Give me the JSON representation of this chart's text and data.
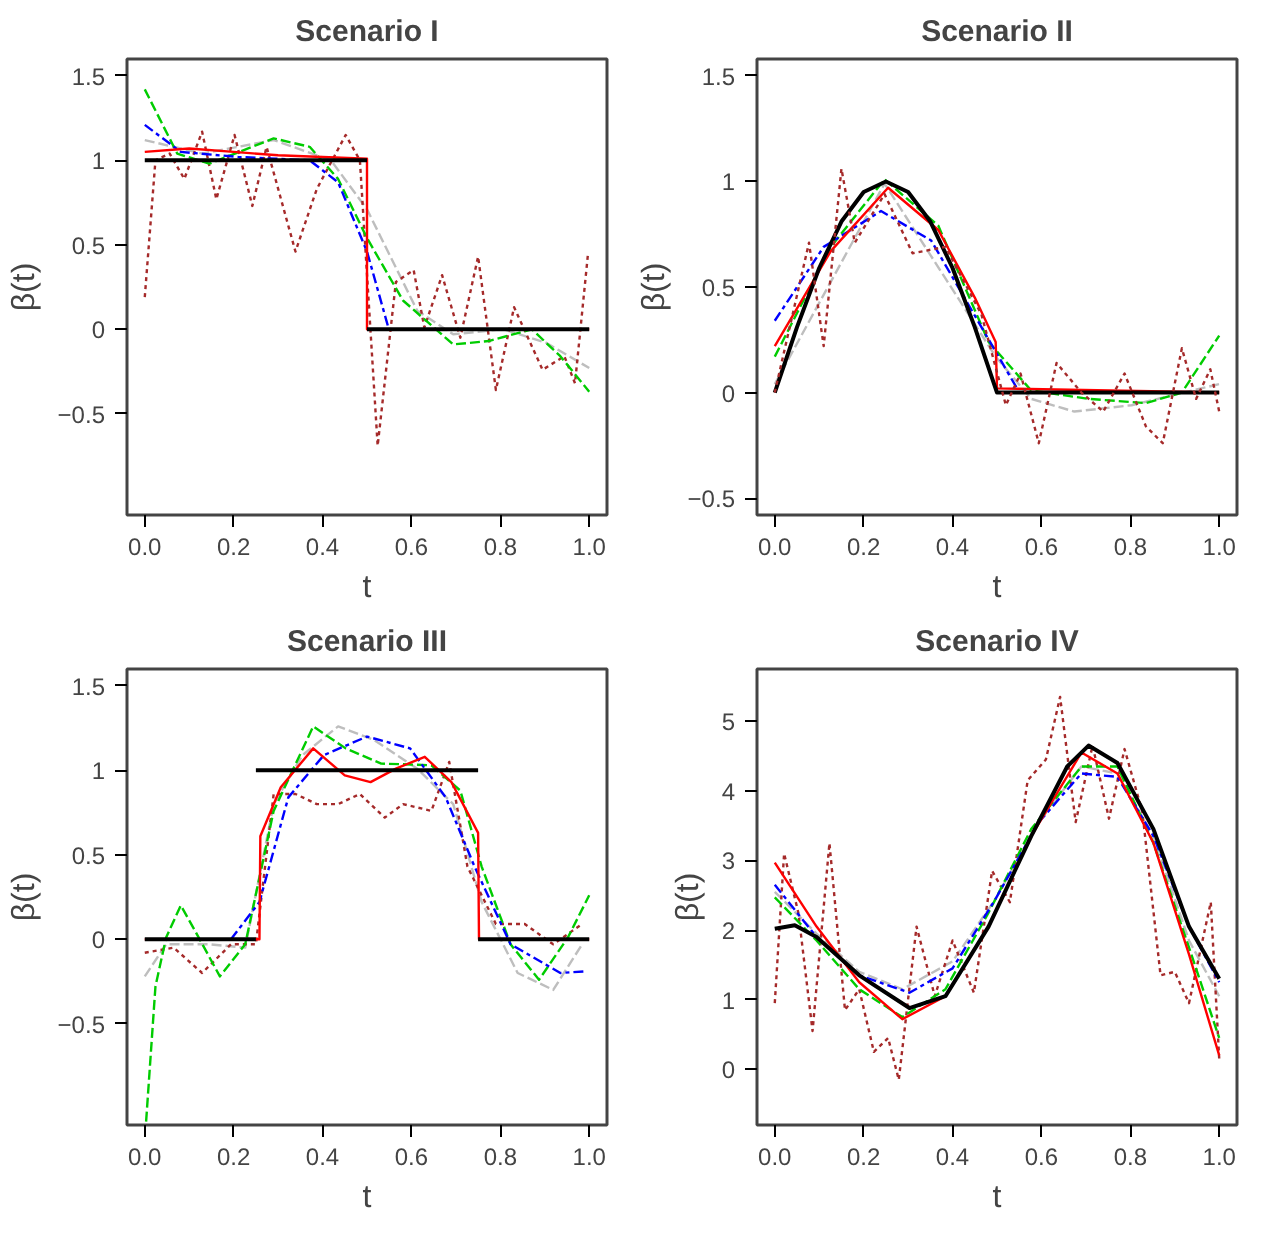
{
  "chart_data": [
    {
      "type": "line",
      "title": "Scenario I",
      "xlabel": "t",
      "ylabel": "β(t)",
      "xlim": [
        -0.04,
        1.04
      ],
      "ylim": [
        -1.1,
        1.6
      ],
      "xticks": [
        {
          "value": 0,
          "label": "0.0"
        },
        {
          "value": 0.2,
          "label": "0.2"
        },
        {
          "value": 0.4,
          "label": "0.4"
        },
        {
          "value": 0.6,
          "label": "0.6"
        },
        {
          "value": 0.8,
          "label": "0.8"
        },
        {
          "value": 1,
          "label": "1.0"
        }
      ],
      "yticks": [
        -0.5,
        0,
        0.5,
        1,
        1.5
      ],
      "grid": false,
      "series": [
        {
          "color": "#bebebe",
          "line_style": "dashed",
          "x": [
            0,
            0.129,
            0.29,
            0.419,
            0.5,
            0.613,
            0.694,
            0.806,
            0.903,
            1
          ],
          "values": [
            1.12,
            1.04,
            1.12,
            1.0,
            0.71,
            0.11,
            -0.03,
            0.0,
            -0.08,
            -0.23
          ]
        },
        {
          "color": "#a52a2a",
          "line_style": "dotted",
          "x": [
            0,
            0.024,
            0.056,
            0.089,
            0.129,
            0.161,
            0.202,
            0.242,
            0.274,
            0.339,
            0.387,
            0.452,
            0.484,
            0.524,
            0.565,
            0.605,
            0.629,
            0.669,
            0.71,
            0.75,
            0.79,
            0.831,
            0.895,
            0.944,
            0.968,
            0.997
          ],
          "values": [
            0.19,
            1.0,
            1.04,
            0.89,
            1.17,
            0.77,
            1.15,
            0.73,
            1.08,
            0.46,
            0.83,
            1.15,
            1.0,
            -0.69,
            0.28,
            0.35,
            0.01,
            0.32,
            -0.05,
            0.43,
            -0.36,
            0.13,
            -0.24,
            -0.16,
            -0.32,
            0.44
          ]
        },
        {
          "color": "#00cc00",
          "line_style": "dashed",
          "x": [
            0,
            0.073,
            0.145,
            0.29,
            0.371,
            0.435,
            0.5,
            0.581,
            0.694,
            0.774,
            0.871,
            0.935,
            1
          ],
          "values": [
            1.42,
            1.04,
            0.98,
            1.13,
            1.08,
            0.89,
            0.54,
            0.17,
            -0.09,
            -0.07,
            0.0,
            -0.16,
            -0.37
          ]
        },
        {
          "color": "#0000ff",
          "line_style": "dotdash",
          "x": [
            0,
            0.081,
            0.21,
            0.371,
            0.435,
            0.5,
            0.548
          ],
          "values": [
            1.21,
            1.05,
            1.02,
            1.0,
            0.87,
            0.46,
            0.01
          ]
        },
        {
          "color": "#ff0000",
          "line_style": "solid",
          "x": [
            0,
            0.1,
            0.2,
            0.3,
            0.4,
            0.5,
            0.5,
            1
          ],
          "values": [
            1.05,
            1.07,
            1.05,
            1.03,
            1.02,
            1.01,
            0,
            0
          ]
        },
        {
          "color": "#000000",
          "line_style": "solid",
          "x": [
            0,
            0.5
          ],
          "values": [
            1,
            1
          ]
        },
        {
          "color": "#000000",
          "line_style": "solid",
          "x": [
            0.5,
            1
          ],
          "values": [
            0,
            0
          ]
        }
      ]
    },
    {
      "type": "line",
      "title": "Scenario II",
      "xlabel": "t",
      "ylabel": "β(t)",
      "xlim": [
        -0.04,
        1.04
      ],
      "ylim": [
        -0.58,
        1.58
      ],
      "xticks": [
        {
          "value": 0,
          "label": "0.0"
        },
        {
          "value": 0.2,
          "label": "0.2"
        },
        {
          "value": 0.4,
          "label": "0.4"
        },
        {
          "value": 0.6,
          "label": "0.6"
        },
        {
          "value": 0.8,
          "label": "0.8"
        },
        {
          "value": 1,
          "label": "1.0"
        }
      ],
      "yticks": [
        -0.5,
        0,
        0.5,
        1,
        1.5
      ],
      "grid": false,
      "series": [
        {
          "color": "#bebebe",
          "line_style": "dashed",
          "x": [
            0,
            0.247,
            0.497,
            0.577,
            0.674,
            0.803,
            0.9,
            1
          ],
          "values": [
            0.04,
            0.99,
            0.17,
            -0.03,
            -0.09,
            -0.06,
            -0.01,
            0.04
          ]
        },
        {
          "color": "#00cc00",
          "line_style": "dashed",
          "x": [
            0,
            0.126,
            0.247,
            0.368,
            0.481,
            0.577,
            0.706,
            0.835,
            0.916,
            1
          ],
          "values": [
            0.17,
            0.69,
            1.01,
            0.79,
            0.24,
            0.01,
            -0.03,
            -0.05,
            0.0,
            0.27
          ]
        },
        {
          "color": "#0000ff",
          "line_style": "dotdash",
          "x": [
            0,
            0.11,
            0.239,
            0.352,
            0.465,
            0.545
          ],
          "values": [
            0.34,
            0.69,
            0.86,
            0.72,
            0.31,
            0.02
          ]
        },
        {
          "color": "#ff0000",
          "line_style": "solid",
          "x": [
            0,
            0.126,
            0.255,
            0.368,
            0.45,
            0.497,
            0.5,
            1
          ],
          "values": [
            0.22,
            0.67,
            0.97,
            0.77,
            0.45,
            0.24,
            0.02,
            0
          ]
        },
        {
          "color": "#000000",
          "line_style": "solid",
          "x": [
            0,
            0.05,
            0.1,
            0.15,
            0.2,
            0.25,
            0.3,
            0.35,
            0.4,
            0.45,
            0.5,
            1
          ],
          "values": [
            0,
            0.31,
            0.59,
            0.81,
            0.95,
            1,
            0.95,
            0.81,
            0.59,
            0.31,
            0,
            0
          ]
        },
        {
          "color": "#a52a2a",
          "line_style": "dotted",
          "x": [
            0,
            0.077,
            0.11,
            0.15,
            0.18,
            0.247,
            0.31,
            0.384,
            0.465,
            0.52,
            0.553,
            0.594,
            0.634,
            0.69,
            0.739,
            0.787,
            0.835,
            0.873,
            0.916,
            0.948,
            0.98,
            1
          ],
          "values": [
            0.0,
            0.71,
            0.22,
            1.06,
            0.71,
            0.94,
            0.66,
            0.69,
            0.37,
            -0.06,
            0.09,
            -0.24,
            0.14,
            0.0,
            -0.09,
            0.09,
            -0.16,
            -0.24,
            0.21,
            -0.03,
            0.11,
            -0.09
          ]
        }
      ]
    },
    {
      "type": "line",
      "title": "Scenario III",
      "xlabel": "t",
      "ylabel": "β(t)",
      "xlim": [
        -0.04,
        1.04
      ],
      "ylim": [
        -1.1,
        1.6
      ],
      "xticks": [
        {
          "value": 0,
          "label": "0.0"
        },
        {
          "value": 0.2,
          "label": "0.2"
        },
        {
          "value": 0.4,
          "label": "0.4"
        },
        {
          "value": 0.6,
          "label": "0.6"
        },
        {
          "value": 0.8,
          "label": "0.8"
        },
        {
          "value": 1,
          "label": "1.0"
        }
      ],
      "yticks": [
        -0.5,
        0,
        0.5,
        1,
        1.5
      ],
      "grid": false,
      "series": [
        {
          "color": "#bebebe",
          "line_style": "dashed",
          "x": [
            0,
            0.048,
            0.145,
            0.226,
            0.29,
            0.355,
            0.435,
            0.516,
            0.613,
            0.694,
            0.758,
            0.839,
            0.919,
            0.984
          ],
          "values": [
            -0.22,
            -0.03,
            -0.03,
            -0.05,
            0.8,
            1.09,
            1.26,
            1.18,
            1.01,
            0.8,
            0.22,
            -0.2,
            -0.3,
            -0.03
          ]
        },
        {
          "color": "#a52a2a",
          "line_style": "dotted",
          "x": [
            0,
            0.065,
            0.129,
            0.194,
            0.25,
            0.29,
            0.339,
            0.387,
            0.435,
            0.484,
            0.54,
            0.581,
            0.645,
            0.685,
            0.726,
            0.79,
            0.855,
            0.919,
            0.984
          ],
          "values": [
            -0.08,
            -0.05,
            -0.2,
            -0.03,
            -0.03,
            0.86,
            0.86,
            0.8,
            0.8,
            0.86,
            0.72,
            0.8,
            0.76,
            1.05,
            0.43,
            0.09,
            0.09,
            -0.03,
            0.09
          ]
        },
        {
          "color": "#00cc00",
          "line_style": "dashed",
          "x": [
            0.003,
            0.024,
            0.048,
            0.081,
            0.113,
            0.169,
            0.226,
            0.29,
            0.379,
            0.452,
            0.532,
            0.645,
            0.71,
            0.758,
            0.823,
            0.887,
            0.952,
            1
          ],
          "values": [
            -1.08,
            -0.28,
            0.01,
            0.2,
            0.05,
            -0.22,
            -0.03,
            0.76,
            1.26,
            1.13,
            1.04,
            1.03,
            0.88,
            0.43,
            -0.03,
            -0.24,
            0.01,
            0.26
          ]
        },
        {
          "color": "#0000ff",
          "line_style": "dotdash",
          "x": [
            0.194,
            0.258,
            0.323,
            0.403,
            0.5,
            0.597,
            0.677,
            0.742,
            0.823,
            0.935,
            0.992
          ],
          "values": [
            0,
            0.22,
            0.84,
            1.09,
            1.2,
            1.13,
            0.84,
            0.43,
            -0.03,
            -0.2,
            -0.19
          ]
        },
        {
          "color": "#ff0000",
          "line_style": "solid",
          "x": [
            0,
            0.258,
            0.26,
            0.306,
            0.379,
            0.45,
            0.508,
            0.565,
            0.63,
            0.69,
            0.75,
            0.752,
            1
          ],
          "values": [
            0,
            0,
            0.61,
            0.9,
            1.13,
            0.97,
            0.93,
            1.01,
            1.08,
            0.93,
            0.63,
            0,
            0
          ]
        },
        {
          "color": "#000000",
          "line_style": "solid",
          "x": [
            0,
            0.25
          ],
          "values": [
            0,
            0
          ]
        },
        {
          "color": "#000000",
          "line_style": "solid",
          "x": [
            0.25,
            0.75
          ],
          "values": [
            1,
            1
          ]
        },
        {
          "color": "#000000",
          "line_style": "solid",
          "x": [
            0.75,
            1
          ],
          "values": [
            0,
            0
          ]
        }
      ]
    },
    {
      "type": "line",
      "title": "Scenario IV",
      "xlabel": "t",
      "ylabel": "β(t)",
      "xlim": [
        -0.04,
        1.04
      ],
      "ylim": [
        -0.8,
        5.75
      ],
      "xticks": [
        {
          "value": 0,
          "label": "0.0"
        },
        {
          "value": 0.2,
          "label": "0.2"
        },
        {
          "value": 0.4,
          "label": "0.4"
        },
        {
          "value": 0.6,
          "label": "0.6"
        },
        {
          "value": 0.8,
          "label": "0.8"
        },
        {
          "value": 1,
          "label": "1.0"
        }
      ],
      "yticks": [
        0,
        1,
        2,
        3,
        4,
        5
      ],
      "grid": false,
      "series": [
        {
          "color": "#bebebe",
          "line_style": "dashed",
          "x": [
            0,
            0.094,
            0.19,
            0.287,
            0.4,
            0.497,
            0.594,
            0.69,
            0.771,
            0.852,
            0.932,
            1
          ],
          "values": [
            2.55,
            1.95,
            1.4,
            1.15,
            1.55,
            2.45,
            3.55,
            4.35,
            4.25,
            3.35,
            1.85,
            1.05
          ]
        },
        {
          "color": "#a52a2a",
          "line_style": "dotted",
          "x": [
            0,
            0.021,
            0.053,
            0.085,
            0.123,
            0.158,
            0.19,
            0.223,
            0.255,
            0.279,
            0.319,
            0.36,
            0.4,
            0.448,
            0.489,
            0.529,
            0.569,
            0.61,
            0.642,
            0.677,
            0.715,
            0.752,
            0.787,
            0.827,
            0.868,
            0.9,
            0.932,
            0.981,
            1
          ],
          "values": [
            0.95,
            3.1,
            2.25,
            0.55,
            3.25,
            0.85,
            1.15,
            0.25,
            0.45,
            -0.15,
            2.05,
            1.05,
            1.85,
            1.1,
            2.85,
            2.4,
            4.15,
            4.45,
            5.35,
            3.55,
            4.65,
            3.6,
            4.6,
            3.7,
            1.35,
            1.4,
            0.95,
            2.4,
            0.15
          ]
        },
        {
          "color": "#00cc00",
          "line_style": "dashed",
          "x": [
            0,
            0.094,
            0.19,
            0.287,
            0.384,
            0.481,
            0.577,
            0.69,
            0.771,
            0.852,
            0.932,
            1
          ],
          "values": [
            2.47,
            1.85,
            1.15,
            0.75,
            1.15,
            2.25,
            3.45,
            4.35,
            4.35,
            3.25,
            1.75,
            0.45
          ]
        },
        {
          "color": "#0000ff",
          "line_style": "dotdash",
          "x": [
            0,
            0.094,
            0.19,
            0.303,
            0.4,
            0.497,
            0.594,
            0.69,
            0.771,
            0.852,
            0.932,
            1
          ],
          "values": [
            2.65,
            1.9,
            1.35,
            1.1,
            1.45,
            2.45,
            3.55,
            4.25,
            4.2,
            3.35,
            2.05,
            1.25
          ]
        },
        {
          "color": "#ff0000",
          "line_style": "solid",
          "x": [
            0,
            0.094,
            0.19,
            0.287,
            0.384,
            0.481,
            0.577,
            0.69,
            0.771,
            0.852,
            0.932,
            1
          ],
          "values": [
            2.97,
            2.05,
            1.25,
            0.72,
            1.05,
            2.05,
            3.35,
            4.55,
            4.25,
            3.25,
            1.65,
            0.2
          ]
        },
        {
          "color": "#000000",
          "line_style": "solid",
          "x": [
            0,
            0.045,
            0.094,
            0.19,
            0.303,
            0.384,
            0.481,
            0.577,
            0.658,
            0.706,
            0.771,
            0.852,
            0.932,
            1
          ],
          "values": [
            2.02,
            2.07,
            1.9,
            1.35,
            0.88,
            1.05,
            2.05,
            3.35,
            4.35,
            4.65,
            4.4,
            3.45,
            2.05,
            1.3
          ]
        }
      ]
    }
  ]
}
